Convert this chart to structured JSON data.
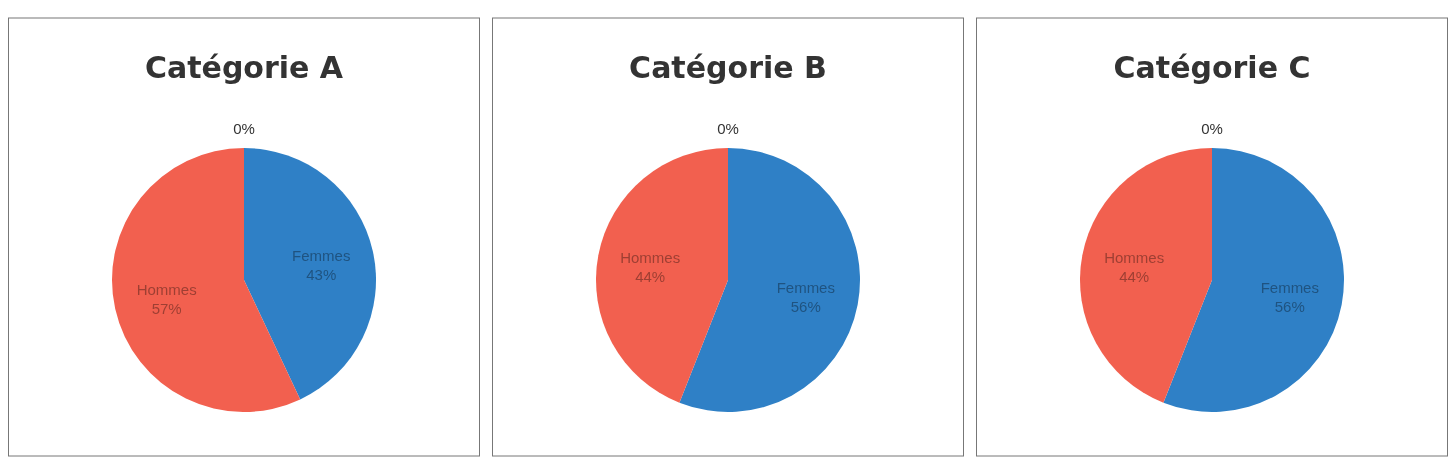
{
  "chart_data": [
    {
      "type": "pie",
      "title": "Catégorie A",
      "categories": [
        null,
        "Femmes",
        "Hommes"
      ],
      "values": [
        0,
        43,
        57
      ],
      "value_labels": [
        "0%",
        "43%",
        "57%"
      ],
      "colors": [
        "#1f5f99",
        "#2f80c6",
        "#f2604f"
      ]
    },
    {
      "type": "pie",
      "title": "Catégorie B",
      "categories": [
        null,
        "Femmes",
        "Hommes"
      ],
      "values": [
        0,
        56,
        44
      ],
      "value_labels": [
        "0%",
        "56%",
        "44%"
      ],
      "colors": [
        "#1f5f99",
        "#2f80c6",
        "#f2604f"
      ]
    },
    {
      "type": "pie",
      "title": "Catégorie C",
      "categories": [
        null,
        "Femmes",
        "Hommes"
      ],
      "values": [
        0,
        56,
        44
      ],
      "value_labels": [
        "0%",
        "56%",
        "44%"
      ],
      "colors": [
        "#1f5f99",
        "#2f80c6",
        "#f2604f"
      ]
    }
  ]
}
